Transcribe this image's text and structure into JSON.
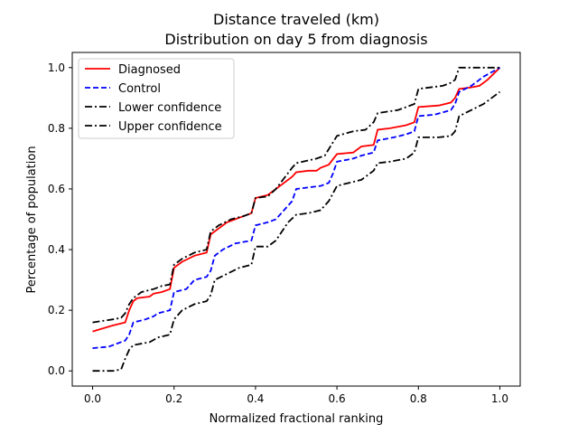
{
  "chart_data": {
    "type": "line",
    "title": "Distance traveled (km)",
    "subtitle": "Distribution on day 5 from diagnosis",
    "xlabel": "Normalized fractional ranking",
    "ylabel": "Percentage of population",
    "xlim": [
      -0.05,
      1.05
    ],
    "ylim": [
      -0.05,
      1.05
    ],
    "xticks": [
      "0.0",
      "0.2",
      "0.4",
      "0.6",
      "0.8",
      "1.0"
    ],
    "yticks": [
      "0.0",
      "0.2",
      "0.4",
      "0.6",
      "0.8",
      "1.0"
    ],
    "grid": false,
    "legend_position": "top-left",
    "series": [
      {
        "name": "Diagnosed",
        "color": "#ff0000",
        "style": "solid",
        "x": [
          0,
          0.05,
          0.08,
          0.09,
          0.1,
          0.11,
          0.14,
          0.15,
          0.17,
          0.19,
          0.2,
          0.22,
          0.25,
          0.28,
          0.29,
          0.3,
          0.33,
          0.36,
          0.39,
          0.4,
          0.43,
          0.45,
          0.49,
          0.5,
          0.53,
          0.55,
          0.56,
          0.58,
          0.6,
          0.64,
          0.66,
          0.69,
          0.7,
          0.73,
          0.77,
          0.79,
          0.8,
          0.85,
          0.88,
          0.89,
          0.9,
          0.93,
          0.95,
          0.97,
          1.0
        ],
        "y": [
          0.13,
          0.15,
          0.16,
          0.2,
          0.23,
          0.24,
          0.245,
          0.255,
          0.26,
          0.27,
          0.34,
          0.36,
          0.38,
          0.39,
          0.45,
          0.46,
          0.49,
          0.505,
          0.52,
          0.57,
          0.58,
          0.6,
          0.64,
          0.655,
          0.66,
          0.66,
          0.67,
          0.68,
          0.715,
          0.72,
          0.74,
          0.745,
          0.795,
          0.8,
          0.81,
          0.82,
          0.87,
          0.875,
          0.885,
          0.9,
          0.93,
          0.935,
          0.94,
          0.96,
          1.0
        ]
      },
      {
        "name": "Control",
        "color": "#0000ff",
        "style": "dashed",
        "x": [
          0,
          0.04,
          0.06,
          0.08,
          0.09,
          0.1,
          0.13,
          0.15,
          0.16,
          0.19,
          0.2,
          0.23,
          0.25,
          0.28,
          0.29,
          0.3,
          0.32,
          0.35,
          0.39,
          0.4,
          0.43,
          0.45,
          0.49,
          0.5,
          0.53,
          0.56,
          0.58,
          0.59,
          0.6,
          0.64,
          0.66,
          0.69,
          0.7,
          0.74,
          0.77,
          0.79,
          0.8,
          0.84,
          0.88,
          0.89,
          0.9,
          0.93,
          0.96,
          1.0
        ],
        "y": [
          0.075,
          0.08,
          0.09,
          0.1,
          0.12,
          0.16,
          0.17,
          0.18,
          0.19,
          0.2,
          0.26,
          0.27,
          0.3,
          0.31,
          0.33,
          0.38,
          0.4,
          0.42,
          0.43,
          0.48,
          0.49,
          0.5,
          0.56,
          0.6,
          0.605,
          0.61,
          0.62,
          0.65,
          0.69,
          0.7,
          0.71,
          0.72,
          0.76,
          0.77,
          0.78,
          0.79,
          0.84,
          0.845,
          0.86,
          0.88,
          0.92,
          0.94,
          0.97,
          1.0
        ]
      },
      {
        "name": "Lower confidence",
        "color": "#000000",
        "style": "dashdot",
        "x": [
          0,
          0.05,
          0.07,
          0.08,
          0.09,
          0.1,
          0.14,
          0.16,
          0.19,
          0.2,
          0.22,
          0.25,
          0.28,
          0.29,
          0.3,
          0.33,
          0.36,
          0.39,
          0.4,
          0.43,
          0.45,
          0.48,
          0.5,
          0.53,
          0.56,
          0.58,
          0.6,
          0.63,
          0.66,
          0.69,
          0.7,
          0.73,
          0.77,
          0.79,
          0.8,
          0.85,
          0.88,
          0.89,
          0.9,
          0.93,
          0.96,
          1.0
        ],
        "y": [
          0.0,
          0.0,
          0.005,
          0.04,
          0.07,
          0.085,
          0.095,
          0.11,
          0.12,
          0.17,
          0.2,
          0.22,
          0.23,
          0.25,
          0.3,
          0.32,
          0.34,
          0.35,
          0.41,
          0.41,
          0.43,
          0.49,
          0.515,
          0.52,
          0.53,
          0.56,
          0.61,
          0.62,
          0.63,
          0.66,
          0.685,
          0.69,
          0.7,
          0.72,
          0.77,
          0.77,
          0.775,
          0.79,
          0.84,
          0.86,
          0.88,
          0.92
        ]
      },
      {
        "name": "Upper confidence",
        "color": "#000000",
        "style": "dashdot",
        "x": [
          0,
          0.05,
          0.07,
          0.08,
          0.09,
          0.1,
          0.12,
          0.15,
          0.17,
          0.19,
          0.2,
          0.22,
          0.25,
          0.28,
          0.29,
          0.31,
          0.34,
          0.37,
          0.39,
          0.4,
          0.43,
          0.45,
          0.49,
          0.5,
          0.55,
          0.57,
          0.6,
          0.64,
          0.67,
          0.69,
          0.7,
          0.75,
          0.77,
          0.79,
          0.8,
          0.86,
          0.88,
          0.89,
          0.9,
          0.92,
          0.95,
          1.0
        ],
        "y": [
          0.16,
          0.17,
          0.175,
          0.19,
          0.22,
          0.24,
          0.26,
          0.27,
          0.28,
          0.285,
          0.35,
          0.37,
          0.39,
          0.4,
          0.46,
          0.48,
          0.5,
          0.51,
          0.52,
          0.57,
          0.575,
          0.6,
          0.67,
          0.685,
          0.7,
          0.71,
          0.775,
          0.79,
          0.795,
          0.82,
          0.85,
          0.86,
          0.87,
          0.88,
          0.93,
          0.94,
          0.95,
          0.96,
          1.0,
          1.0,
          1.0,
          1.0
        ]
      }
    ]
  }
}
